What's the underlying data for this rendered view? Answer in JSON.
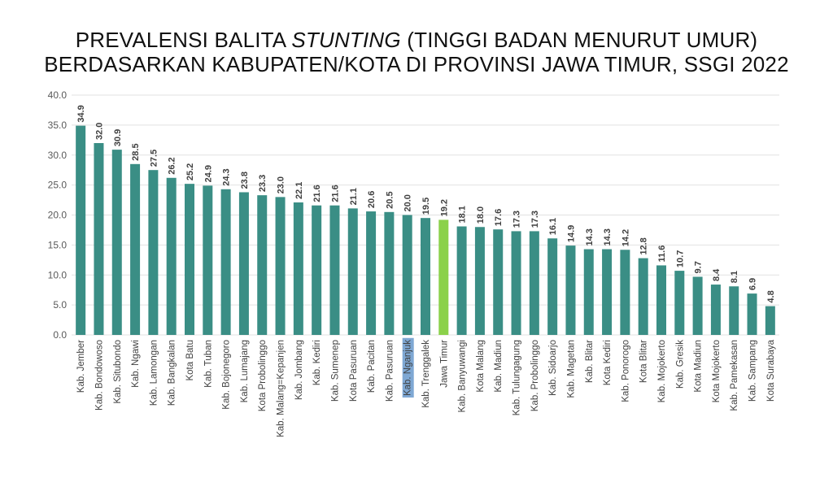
{
  "title": {
    "line1_pre": "PREVALENSI BALITA ",
    "line1_em": "STUNTING",
    "line1_post": " (TINGGI BADAN MENURUT UMUR)",
    "line2": "BERDASARKAN KABUPATEN/KOTA DI PROVINSI JAWA TIMUR, SSGI 2022"
  },
  "colors": {
    "bar": "#3A8E85",
    "highlight_bar": "#8BD14A",
    "highlight_label_bg": "#7FA8D4",
    "grid": "#E2E2E2"
  },
  "chart_data": {
    "type": "bar",
    "categories": [
      "Kab. Jember",
      "Kab. Bondowoso",
      "Kab. Situbondo",
      "Kab. Ngawi",
      "Kab. Lamongan",
      "Kab. Bangkalan",
      "Kota Batu",
      "Kab. Tuban",
      "Kab. Bojonegoro",
      "Kab. Lumajang",
      "Kota Probolinggo",
      "Kab. Malang=Kepanjen",
      "Kab. Jombang",
      "Kab. Kediri",
      "Kab. Sumenep",
      "Kota Pasuruan",
      "Kab. Pacitan",
      "Kab. Pasuruan",
      "Kab. Nganjuk",
      "Kab. Trenggalek",
      "Jawa Timur",
      "Kab. Banyuwangi",
      "Kota Malang",
      "Kab. Madiun",
      "Kab. Tulungagung",
      "Kab. Probolinggo",
      "Kab. Sidoarjo",
      "Kab. Magetan",
      "Kab. Blitar",
      "Kota Kediri",
      "Kab. Ponorogo",
      "Kota Blitar",
      "Kab. Mojokerto",
      "Kab. Gresik",
      "Kota Madiun",
      "Kota Mojokerto",
      "Kab. Pamekasan",
      "Kab. Sampang",
      "Kota Surabaya"
    ],
    "values": [
      34.9,
      32.0,
      30.9,
      28.5,
      27.5,
      26.2,
      25.2,
      24.9,
      24.3,
      23.8,
      23.3,
      23.0,
      22.1,
      21.6,
      21.6,
      21.1,
      20.6,
      20.5,
      20.0,
      19.5,
      19.2,
      18.1,
      18.0,
      17.6,
      17.3,
      17.3,
      16.1,
      14.9,
      14.3,
      14.3,
      14.2,
      12.8,
      11.6,
      10.7,
      9.7,
      8.4,
      8.1,
      6.9,
      4.8
    ],
    "highlight_bar_category": "Jawa Timur",
    "highlight_label_category": "Kab. Nganjuk",
    "ylim": [
      0,
      40
    ],
    "yticks": [
      "0.0",
      "5.0",
      "10.0",
      "15.0",
      "20.0",
      "25.0",
      "30.0",
      "35.0",
      "40.0"
    ],
    "grid": true,
    "legend": "none",
    "xlabel": "",
    "ylabel": ""
  }
}
